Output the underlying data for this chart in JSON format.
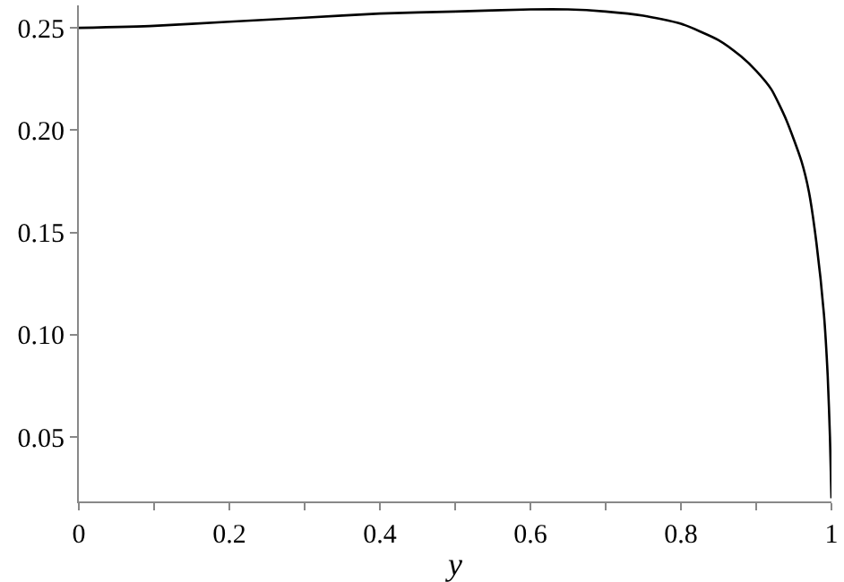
{
  "chart_data": {
    "type": "line",
    "xlabel": "y",
    "x": [
      0,
      0.1,
      0.2,
      0.3,
      0.4,
      0.5,
      0.6,
      0.65,
      0.7,
      0.75,
      0.8,
      0.85,
      0.88,
      0.9,
      0.92,
      0.94,
      0.96,
      0.97,
      0.98,
      0.99,
      0.995,
      0.998,
      1
    ],
    "series": [
      {
        "color": "#000000",
        "values": [
          0.25,
          0.251,
          0.253,
          0.255,
          0.257,
          0.258,
          0.259,
          0.259,
          0.258,
          0.256,
          0.252,
          0.244,
          0.236,
          0.229,
          0.22,
          0.205,
          0.185,
          0.17,
          0.145,
          0.11,
          0.08,
          0.05,
          0.02
        ]
      }
    ],
    "xlim": [
      0,
      1
    ],
    "ylim": [
      0.0185,
      0.261
    ],
    "xticks": [
      0,
      {
        "value": 0.1,
        "label": null
      },
      0.2,
      {
        "value": 0.3,
        "label": null
      },
      0.4,
      {
        "value": 0.5,
        "label": null
      },
      0.6,
      {
        "value": 0.7,
        "label": null
      },
      0.8,
      {
        "value": 0.9,
        "label": null
      },
      1
    ],
    "yticks": [
      0.05,
      {
        "value": 0.1,
        "label": "0.10"
      },
      0.15,
      {
        "value": 0.2,
        "label": "0.20"
      },
      0.25
    ],
    "marker": "none",
    "line_style": "solid"
  }
}
